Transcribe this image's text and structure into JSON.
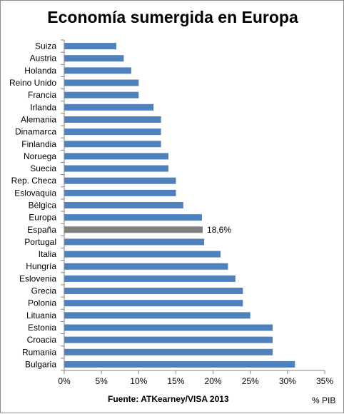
{
  "chart_data": {
    "type": "bar",
    "orientation": "horizontal",
    "title": "Economía sumergida en Europa",
    "source": "Fuente: ATKearney/VISA 2013",
    "unit_label": "% PIB",
    "categories": [
      "Suiza",
      "Austria",
      "Holanda",
      "Reino Unido",
      "Francia",
      "Irlanda",
      "Alemania",
      "Dinamarca",
      "Finlandia",
      "Noruega",
      "Suecia",
      "Rep. Checa",
      "Eslovaquia",
      "Bélgica",
      "Europa",
      "España",
      "Portugal",
      "Italia",
      "Hungría",
      "Eslovenia",
      "Grecia",
      "Polonia",
      "Lituania",
      "Estonia",
      "Croacia",
      "Rumania",
      "Bulgaria"
    ],
    "values": [
      7,
      8,
      9,
      10,
      10,
      12,
      13,
      13,
      13,
      14,
      14,
      15,
      15,
      16,
      18.5,
      18.6,
      18.8,
      21,
      22,
      23,
      24,
      24,
      25,
      28,
      28,
      28,
      31
    ],
    "highlight": {
      "category": "España",
      "label": "18,6%",
      "color": "#7f7f7f"
    },
    "bar_color": "#4f81bd",
    "xlim": [
      0,
      35
    ],
    "xticks": [
      "0%",
      "5%",
      "10%",
      "15%",
      "20%",
      "25%",
      "30%",
      "35%"
    ],
    "grid": false,
    "legend": "none"
  }
}
